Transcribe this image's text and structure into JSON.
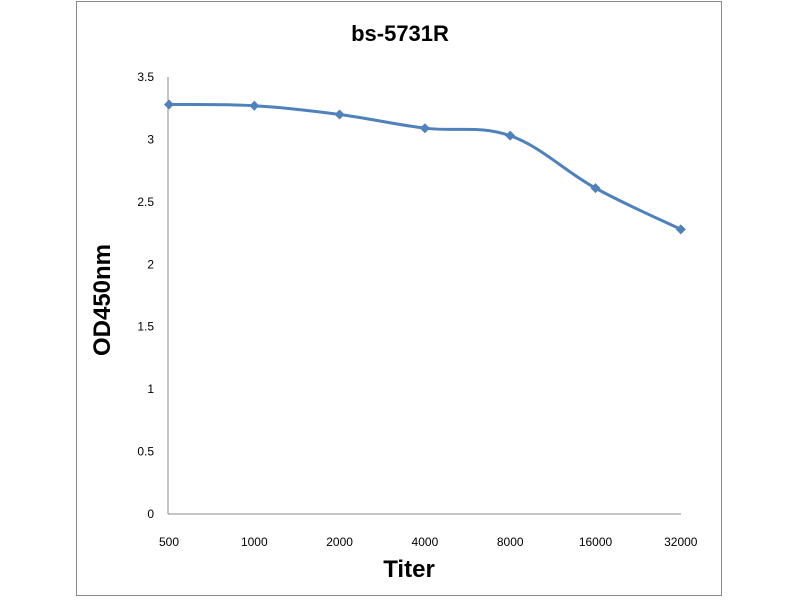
{
  "chart_data": {
    "type": "line",
    "title": "bs-5731R",
    "xlabel": "Titer",
    "ylabel": "OD450nm",
    "categories": [
      "500",
      "1000",
      "2000",
      "4000",
      "8000",
      "16000",
      "32000"
    ],
    "yticks": [
      "0",
      "0.5",
      "1",
      "1.5",
      "2",
      "2.5",
      "3",
      "3.5"
    ],
    "ylim": [
      0,
      3.5
    ],
    "grid": false,
    "series": [
      {
        "values": [
          3.28,
          3.27,
          3.2,
          3.09,
          3.03,
          2.61,
          2.28
        ],
        "color": "#4f81bd",
        "marker": "diamond"
      }
    ],
    "frame_color": "#8a8a8a"
  }
}
